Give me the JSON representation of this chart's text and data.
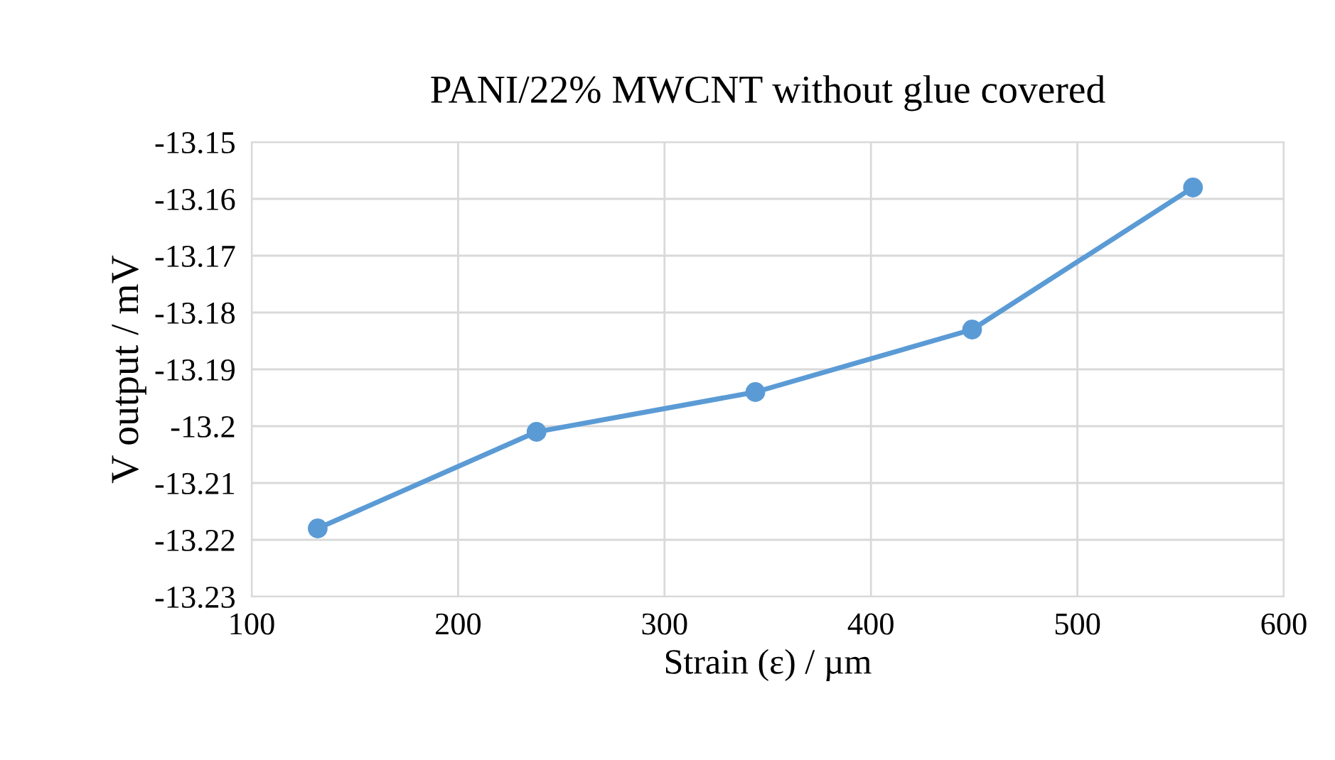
{
  "chart_data": {
    "type": "line",
    "title": "PANI/22% MWCNT without glue covered",
    "xlabel": "Strain (ε) / µm",
    "ylabel": "V output / mV",
    "x": [
      132,
      238,
      344,
      449,
      556
    ],
    "series": [
      {
        "color": "#5b9bd5",
        "values": [
          -13.218,
          -13.201,
          -13.194,
          -13.183,
          -13.158
        ]
      }
    ],
    "xlim": [
      100,
      600
    ],
    "xticks": [
      100,
      200,
      300,
      400,
      500,
      600
    ],
    "ylim": [
      -13.23,
      -13.15
    ],
    "yticks": [
      {
        "value": -13.23,
        "label": "-13.23"
      },
      {
        "value": -13.22,
        "label": "-13.22"
      },
      {
        "value": -13.21,
        "label": "-13.21"
      },
      {
        "value": -13.2,
        "label": "-13.2"
      },
      {
        "value": -13.19,
        "label": "-13.19"
      },
      {
        "value": -13.18,
        "label": "-13.18"
      },
      {
        "value": -13.17,
        "label": "-13.17"
      },
      {
        "value": -13.16,
        "label": "-13.16"
      },
      {
        "value": -13.15,
        "label": "-13.15"
      }
    ],
    "grid": true,
    "marker": "circle",
    "line_style": "solid",
    "legend": false
  }
}
